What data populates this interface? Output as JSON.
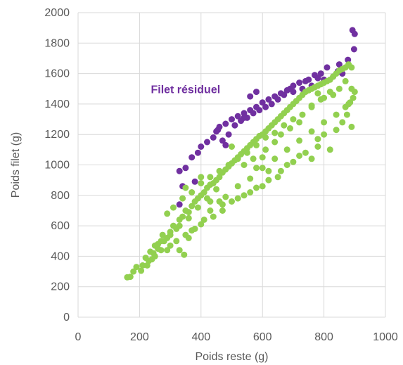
{
  "chart_data": {
    "type": "scatter",
    "title": "",
    "xlabel": "Poids reste (g)",
    "ylabel": "Poids filet (g)",
    "xlim": [
      0,
      1000
    ],
    "ylim": [
      0,
      2000
    ],
    "x_ticks": [
      "0",
      "200",
      "400",
      "600",
      "800",
      "1000"
    ],
    "y_ticks": [
      "0",
      "200",
      "400",
      "600",
      "800",
      "1000",
      "1200",
      "1400",
      "1600",
      "1800",
      "2000"
    ],
    "grid": "major, both axes",
    "legend": "none",
    "annotations": [
      {
        "text": "Filet résiduel",
        "x": 310,
        "y": 1500
      }
    ],
    "series": [
      {
        "name": "Filet résiduel",
        "color": "#7030A0",
        "points": [
          [
            893,
            1885
          ],
          [
            900,
            1860
          ],
          [
            898,
            1760
          ],
          [
            878,
            1690
          ],
          [
            850,
            1660
          ],
          [
            845,
            1615
          ],
          [
            810,
            1640
          ],
          [
            790,
            1600
          ],
          [
            770,
            1590
          ],
          [
            750,
            1560
          ],
          [
            720,
            1540
          ],
          [
            700,
            1520
          ],
          [
            680,
            1490
          ],
          [
            660,
            1470
          ],
          [
            640,
            1450
          ],
          [
            620,
            1430
          ],
          [
            600,
            1410
          ],
          [
            580,
            1380
          ],
          [
            560,
            1360
          ],
          [
            540,
            1340
          ],
          [
            520,
            1320
          ],
          [
            500,
            1300
          ],
          [
            480,
            1270
          ],
          [
            460,
            1250
          ],
          [
            450,
            1220
          ],
          [
            440,
            1180
          ],
          [
            420,
            1150
          ],
          [
            400,
            1120
          ],
          [
            390,
            1080
          ],
          [
            370,
            1050
          ],
          [
            350,
            980
          ],
          [
            330,
            960
          ],
          [
            340,
            860
          ],
          [
            380,
            890
          ],
          [
            470,
            1160
          ],
          [
            490,
            1200
          ],
          [
            510,
            1260
          ],
          [
            530,
            1290
          ],
          [
            570,
            1340
          ],
          [
            610,
            1380
          ],
          [
            630,
            1400
          ],
          [
            650,
            1430
          ],
          [
            700,
            1480
          ],
          [
            730,
            1500
          ],
          [
            760,
            1520
          ],
          [
            800,
            1560
          ],
          [
            830,
            1580
          ],
          [
            860,
            1600
          ],
          [
            550,
            1310
          ],
          [
            590,
            1360
          ],
          [
            670,
            1460
          ],
          [
            690,
            1500
          ],
          [
            740,
            1550
          ],
          [
            780,
            1570
          ],
          [
            580,
            1480
          ],
          [
            560,
            1450
          ],
          [
            480,
            1130
          ],
          [
            330,
            740
          ],
          [
            455,
            1230
          ],
          [
            540,
            1310
          ]
        ]
      },
      {
        "name": "Filet",
        "color": "#92D050",
        "points": [
          [
            160,
            262
          ],
          [
            170,
            265
          ],
          [
            180,
            300
          ],
          [
            190,
            330
          ],
          [
            205,
            305
          ],
          [
            210,
            340
          ],
          [
            220,
            390
          ],
          [
            230,
            370
          ],
          [
            235,
            430
          ],
          [
            250,
            470
          ],
          [
            260,
            450
          ],
          [
            270,
            500
          ],
          [
            275,
            540
          ],
          [
            290,
            520
          ],
          [
            300,
            560
          ],
          [
            310,
            600
          ],
          [
            320,
            580
          ],
          [
            330,
            640
          ],
          [
            340,
            660
          ],
          [
            350,
            700
          ],
          [
            360,
            690
          ],
          [
            370,
            730
          ],
          [
            380,
            760
          ],
          [
            390,
            780
          ],
          [
            400,
            800
          ],
          [
            410,
            820
          ],
          [
            420,
            850
          ],
          [
            430,
            870
          ],
          [
            440,
            880
          ],
          [
            450,
            900
          ],
          [
            460,
            920
          ],
          [
            470,
            950
          ],
          [
            480,
            970
          ],
          [
            490,
            990
          ],
          [
            500,
            1010
          ],
          [
            510,
            1030
          ],
          [
            520,
            1050
          ],
          [
            530,
            1070
          ],
          [
            540,
            1090
          ],
          [
            550,
            1110
          ],
          [
            560,
            1130
          ],
          [
            570,
            1150
          ],
          [
            580,
            1170
          ],
          [
            590,
            1190
          ],
          [
            600,
            1200
          ],
          [
            610,
            1220
          ],
          [
            620,
            1240
          ],
          [
            630,
            1260
          ],
          [
            640,
            1280
          ],
          [
            650,
            1300
          ],
          [
            660,
            1320
          ],
          [
            670,
            1340
          ],
          [
            680,
            1360
          ],
          [
            690,
            1380
          ],
          [
            700,
            1400
          ],
          [
            710,
            1420
          ],
          [
            720,
            1440
          ],
          [
            730,
            1460
          ],
          [
            740,
            1480
          ],
          [
            750,
            1490
          ],
          [
            760,
            1500
          ],
          [
            770,
            1510
          ],
          [
            780,
            1520
          ],
          [
            790,
            1530
          ],
          [
            800,
            1540
          ],
          [
            810,
            1550
          ],
          [
            820,
            1560
          ],
          [
            830,
            1580
          ],
          [
            840,
            1600
          ],
          [
            850,
            1620
          ],
          [
            860,
            1630
          ],
          [
            870,
            1640
          ],
          [
            880,
            1660
          ],
          [
            890,
            1640
          ],
          [
            890,
            1500
          ],
          [
            895,
            1440
          ],
          [
            885,
            1410
          ],
          [
            880,
            1400
          ],
          [
            900,
            1480
          ],
          [
            890,
            1250
          ],
          [
            875,
            1330
          ],
          [
            860,
            1280
          ],
          [
            840,
            1230
          ],
          [
            800,
            1200
          ],
          [
            780,
            1170
          ],
          [
            740,
            1080
          ],
          [
            700,
            1020
          ],
          [
            660,
            960
          ],
          [
            620,
            900
          ],
          [
            580,
            850
          ],
          [
            540,
            800
          ],
          [
            500,
            760
          ],
          [
            470,
            700
          ],
          [
            440,
            660
          ],
          [
            400,
            610
          ],
          [
            370,
            570
          ],
          [
            350,
            540
          ],
          [
            320,
            500
          ],
          [
            300,
            470
          ],
          [
            290,
            440
          ],
          [
            345,
            410
          ],
          [
            270,
            440
          ],
          [
            250,
            400
          ],
          [
            240,
            380
          ],
          [
            225,
            340
          ],
          [
            330,
            440
          ],
          [
            360,
            520
          ],
          [
            380,
            580
          ],
          [
            410,
            640
          ],
          [
            430,
            700
          ],
          [
            460,
            760
          ],
          [
            480,
            790
          ],
          [
            520,
            860
          ],
          [
            560,
            910
          ],
          [
            600,
            980
          ],
          [
            640,
            1040
          ],
          [
            680,
            1100
          ],
          [
            720,
            1160
          ],
          [
            760,
            1220
          ],
          [
            800,
            1280
          ],
          [
            840,
            1330
          ],
          [
            870,
            1380
          ],
          [
            820,
            1480
          ],
          [
            790,
            1430
          ],
          [
            760,
            1380
          ],
          [
            730,
            1330
          ],
          [
            700,
            1300
          ],
          [
            670,
            1260
          ],
          [
            640,
            1210
          ],
          [
            610,
            1180
          ],
          [
            580,
            1130
          ],
          [
            550,
            1080
          ],
          [
            520,
            1040
          ],
          [
            490,
            1000
          ],
          [
            460,
            960
          ],
          [
            430,
            920
          ],
          [
            400,
            880
          ],
          [
            370,
            820
          ],
          [
            340,
            780
          ],
          [
            310,
            720
          ],
          [
            290,
            680
          ],
          [
            400,
            920
          ],
          [
            350,
            850
          ],
          [
            500,
            1120
          ],
          [
            620,
            960
          ],
          [
            680,
            1000
          ],
          [
            720,
            1060
          ],
          [
            760,
            1040
          ],
          [
            780,
            1120
          ],
          [
            820,
            1100
          ],
          [
            650,
            920
          ],
          [
            600,
            860
          ],
          [
            560,
            820
          ],
          [
            520,
            780
          ],
          [
            470,
            740
          ],
          [
            430,
            760
          ],
          [
            760,
            1390
          ],
          [
            780,
            1470
          ],
          [
            800,
            1440
          ],
          [
            850,
            1500
          ],
          [
            870,
            1550
          ],
          [
            830,
            1460
          ],
          [
            660,
            1200
          ],
          [
            690,
            1240
          ],
          [
            720,
            1280
          ],
          [
            540,
            1000
          ],
          [
            570,
            1040
          ],
          [
            610,
            1100
          ],
          [
            640,
            1150
          ],
          [
            600,
            1050
          ],
          [
            580,
            980
          ],
          [
            450,
            840
          ],
          [
            420,
            780
          ],
          [
            390,
            720
          ],
          [
            360,
            650
          ],
          [
            330,
            600
          ],
          [
            300,
            540
          ],
          [
            280,
            500
          ],
          [
            260,
            480
          ],
          [
            245,
            420
          ]
        ]
      }
    ]
  }
}
